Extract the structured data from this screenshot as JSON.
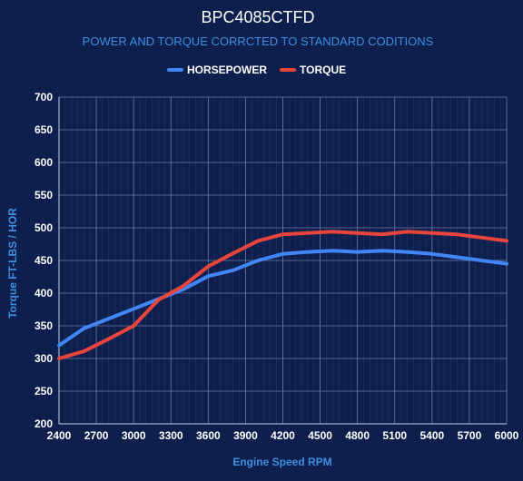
{
  "chart_data": {
    "type": "line",
    "title": "BPC4085CTFD",
    "subtitle": "POWER AND TORQUE CORRCTED TO STANDARD CODITIONS",
    "xlabel": "Engine Speed RPM",
    "ylabel": "Torque FT-LBS / HOR",
    "xlim": [
      2400,
      6000
    ],
    "ylim": [
      200,
      700
    ],
    "x_ticks": [
      "2400",
      "2700",
      "3000",
      "3300",
      "3600",
      "3900",
      "4200",
      "4500",
      "4800",
      "5100",
      "5400",
      "5700",
      "6000"
    ],
    "y_ticks": [
      "200",
      "250",
      "300",
      "350",
      "400",
      "450",
      "500",
      "550",
      "600",
      "650",
      "700"
    ],
    "grid": true,
    "legend_position": "top-center",
    "series": [
      {
        "name": "HORSEPOWER",
        "color": "#4285f4",
        "x": [
          2400,
          2600,
          2800,
          3000,
          3200,
          3400,
          3600,
          3800,
          4000,
          4200,
          4400,
          4600,
          4800,
          5000,
          5200,
          5400,
          5600,
          5800,
          6000
        ],
        "y": [
          320,
          346,
          361,
          376,
          391,
          406,
          426,
          435,
          450,
          460,
          463,
          465,
          463,
          465,
          463,
          460,
          455,
          450,
          445
        ]
      },
      {
        "name": "TORQUE",
        "color": "#e8453c",
        "x": [
          2400,
          2600,
          2800,
          3000,
          3200,
          3400,
          3600,
          3800,
          4000,
          4200,
          4400,
          4600,
          4800,
          5000,
          5200,
          5400,
          5600,
          5800,
          6000
        ],
        "y": [
          300,
          311,
          330,
          350,
          390,
          411,
          441,
          461,
          480,
          490,
          492,
          494,
          492,
          490,
          494,
          492,
          490,
          485,
          480
        ]
      }
    ]
  }
}
